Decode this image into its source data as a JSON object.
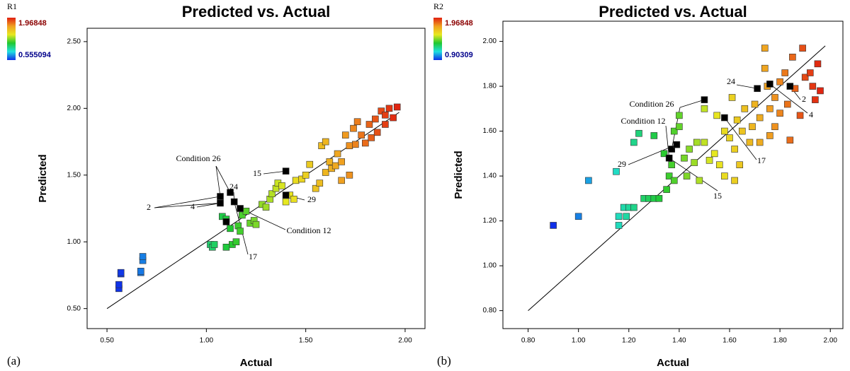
{
  "chart_data": [
    {
      "type": "scatter",
      "panel_label": "(a)",
      "title": "Predicted vs. Actual",
      "x_label": "Actual",
      "y_label": "Predicted",
      "color_legend": {
        "name": "R1",
        "max": 1.96848,
        "min": 0.555094
      },
      "color_scale": [
        "#1030e8",
        "#20e0e0",
        "#20c830",
        "#e8e820",
        "#f0a020",
        "#e02010"
      ],
      "xlim": [
        0.4,
        2.1
      ],
      "ylim": [
        0.35,
        2.6
      ],
      "xticks": [
        {
          "value": 0.5,
          "label": "0.50"
        },
        {
          "value": 1,
          "label": "1.00"
        },
        {
          "value": 1.5,
          "label": "1.50"
        },
        {
          "value": 2,
          "label": "2.00"
        }
      ],
      "yticks": [
        {
          "value": 0.5,
          "label": "0.50"
        },
        {
          "value": 1,
          "label": "1.00"
        },
        {
          "value": 1.5,
          "label": "1.50"
        },
        {
          "value": 2,
          "label": "2.00"
        },
        {
          "value": 2.5,
          "label": "2.50"
        }
      ],
      "reference_line": {
        "x": [
          0.5,
          1.97
        ],
        "y": [
          0.5,
          1.97
        ]
      },
      "series": [
        {
          "x": [
            0.56,
            0.56,
            0.57,
            0.57,
            0.67,
            0.67,
            0.68,
            0.68,
            1.02,
            1.03,
            1.04,
            1.08,
            1.1,
            1.12,
            1.13,
            1.15,
            1.16,
            1.17,
            1.18,
            1.2,
            1.22,
            1.24,
            1.25,
            1.1,
            1.28,
            1.3,
            1.32,
            1.33,
            1.35,
            1.36,
            1.38,
            1.4,
            1.42,
            1.44,
            1.45,
            1.48,
            1.5,
            1.52,
            1.55,
            1.57,
            1.58,
            1.6,
            1.6,
            1.62,
            1.63,
            1.65,
            1.66,
            1.68,
            1.68,
            1.7,
            1.72,
            1.72,
            1.74,
            1.75,
            1.76,
            1.78,
            1.8,
            1.82,
            1.83,
            1.85,
            1.86,
            1.88,
            1.9,
            1.92,
            1.94,
            1.96,
            1.9
          ],
          "values": [
            0.65,
            0.68,
            0.76,
            0.77,
            0.77,
            0.78,
            0.86,
            0.89,
            0.98,
            0.96,
            0.98,
            1.19,
            1.17,
            1.1,
            0.98,
            1.0,
            1.12,
            1.08,
            1.2,
            1.23,
            1.14,
            1.16,
            1.13,
            0.96,
            1.28,
            1.26,
            1.32,
            1.36,
            1.4,
            1.44,
            1.42,
            1.3,
            1.35,
            1.32,
            1.46,
            1.47,
            1.5,
            1.58,
            1.4,
            1.44,
            1.72,
            1.75,
            1.52,
            1.6,
            1.55,
            1.57,
            1.66,
            1.6,
            1.46,
            1.8,
            1.72,
            1.5,
            1.85,
            1.73,
            1.9,
            1.8,
            1.74,
            1.88,
            1.78,
            1.92,
            1.82,
            1.98,
            1.95,
            2.0,
            1.93,
            2.01,
            1.88
          ]
        },
        {
          "color": "#000000",
          "x": [
            1.07,
            1.07,
            1.12,
            1.14,
            1.17,
            1.1,
            1.4,
            1.4
          ],
          "values": [
            1.34,
            1.29,
            1.37,
            1.3,
            1.25,
            1.15,
            1.53,
            1.35
          ]
        }
      ],
      "annotations": [
        "Condition 26",
        "24",
        "4",
        "2",
        "15",
        "29",
        "Condition 12",
        "17"
      ]
    },
    {
      "type": "scatter",
      "panel_label": "(b)",
      "title": "Predicted vs. Actual",
      "x_label": "Actual",
      "y_label": "Predicted",
      "color_legend": {
        "name": "R2",
        "max": 1.96848,
        "min": 0.90309
      },
      "color_scale": [
        "#1030e8",
        "#20e0e0",
        "#20c830",
        "#e8e820",
        "#f0a020",
        "#e02010"
      ],
      "xlim": [
        0.7,
        2.05
      ],
      "ylim": [
        0.72,
        2.09
      ],
      "xticks": [
        {
          "value": 0.8,
          "label": "0.80"
        },
        {
          "value": 1,
          "label": "1.00"
        },
        {
          "value": 1.2,
          "label": "1.20"
        },
        {
          "value": 1.4,
          "label": "1.40"
        },
        {
          "value": 1.6,
          "label": "1.60"
        },
        {
          "value": 1.8,
          "label": "1.80"
        },
        {
          "value": 2,
          "label": "2.00"
        }
      ],
      "yticks": [
        {
          "value": 0.8,
          "label": "0.80"
        },
        {
          "value": 1,
          "label": "1.00"
        },
        {
          "value": 1.2,
          "label": "1.20"
        },
        {
          "value": 1.4,
          "label": "1.40"
        },
        {
          "value": 1.6,
          "label": "1.60"
        },
        {
          "value": 1.8,
          "label": "1.80"
        },
        {
          "value": 2,
          "label": "2.00"
        }
      ],
      "reference_line": {
        "x": [
          0.8,
          1.98
        ],
        "y": [
          0.8,
          1.98
        ]
      },
      "series": [
        {
          "x": [
            0.9,
            1.0,
            1.04,
            1.15,
            1.16,
            1.16,
            1.18,
            1.2,
            1.19,
            1.22,
            1.22,
            1.24,
            1.26,
            1.28,
            1.3,
            1.3,
            1.32,
            1.34,
            1.35,
            1.36,
            1.37,
            1.38,
            1.38,
            1.4,
            1.4,
            1.42,
            1.43,
            1.44,
            1.46,
            1.47,
            1.48,
            1.5,
            1.5,
            1.52,
            1.54,
            1.55,
            1.56,
            1.58,
            1.58,
            1.6,
            1.61,
            1.62,
            1.62,
            1.63,
            1.64,
            1.65,
            1.66,
            1.68,
            1.69,
            1.7,
            1.72,
            1.72,
            1.74,
            1.74,
            1.75,
            1.76,
            1.76,
            1.78,
            1.78,
            1.8,
            1.8,
            1.82,
            1.83,
            1.84,
            1.85,
            1.86,
            1.88,
            1.89,
            1.9,
            1.92,
            1.93,
            1.94,
            1.95,
            1.96
          ],
          "values": [
            1.18,
            1.22,
            1.38,
            1.42,
            1.18,
            1.22,
            1.26,
            1.26,
            1.22,
            1.26,
            1.55,
            1.59,
            1.3,
            1.3,
            1.3,
            1.58,
            1.3,
            1.5,
            1.34,
            1.4,
            1.45,
            1.38,
            1.6,
            1.62,
            1.67,
            1.48,
            1.4,
            1.52,
            1.46,
            1.55,
            1.38,
            1.55,
            1.7,
            1.47,
            1.5,
            1.67,
            1.45,
            1.6,
            1.4,
            1.57,
            1.75,
            1.38,
            1.52,
            1.65,
            1.45,
            1.6,
            1.7,
            1.55,
            1.62,
            1.72,
            1.66,
            1.55,
            1.97,
            1.88,
            1.8,
            1.7,
            1.58,
            1.75,
            1.62,
            1.82,
            1.68,
            1.86,
            1.72,
            1.56,
            1.93,
            1.79,
            1.67,
            1.97,
            1.84,
            1.86,
            1.8,
            1.74,
            1.9,
            1.78
          ]
        },
        {
          "color": "#000000",
          "x": [
            1.36,
            1.37,
            1.39,
            1.5,
            1.58,
            1.71,
            1.76,
            1.84
          ],
          "values": [
            1.48,
            1.52,
            1.54,
            1.74,
            1.66,
            1.79,
            1.81,
            1.8
          ]
        }
      ],
      "annotations": [
        "Condition 26",
        "Condition 12",
        "29",
        "24",
        "2",
        "4",
        "17",
        "15"
      ]
    }
  ]
}
